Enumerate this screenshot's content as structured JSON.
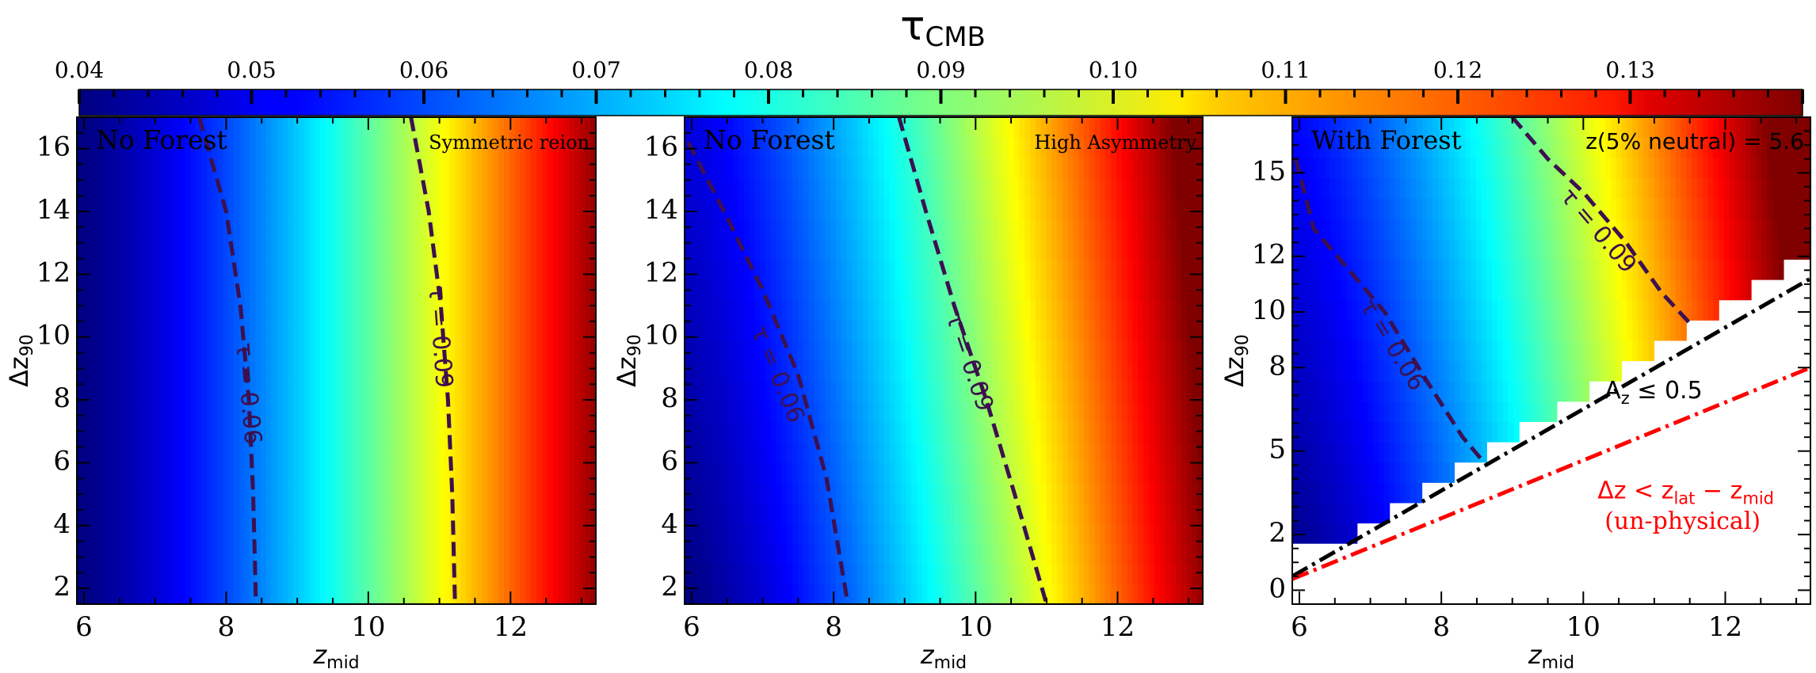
{
  "colorbar": {
    "title_main": "τ",
    "title_sub": "CMB",
    "ticks": [
      0.04,
      0.05,
      0.06,
      0.07,
      0.08,
      0.09,
      0.1,
      0.11,
      0.12,
      0.13
    ],
    "tick_labels": [
      "0.04",
      "0.05",
      "0.06",
      "0.07",
      "0.08",
      "0.09",
      "0.10",
      "0.11",
      "0.12",
      "0.13"
    ],
    "range": [
      0.04,
      0.14
    ],
    "colormap": "jet"
  },
  "chart_data": [
    {
      "type": "heatmap",
      "corner_label_left": "No Forest",
      "corner_label_right": "Symmetric reion",
      "xlabel_main": "z",
      "xlabel_sub": "mid",
      "ylabel_prefix": "Δz",
      "ylabel_sub": "90",
      "xlim": [
        5.9,
        13.2
      ],
      "ylim": [
        1.5,
        17.0
      ],
      "xticks": [
        6,
        8,
        10,
        12
      ],
      "xtick_labels": [
        "6",
        "8",
        "10",
        "12"
      ],
      "yticks": [
        2,
        4,
        6,
        8,
        10,
        12,
        14,
        16
      ],
      "ytick_labels": [
        "2",
        "4",
        "6",
        "8",
        "10",
        "12",
        "14",
        "16"
      ],
      "field": {
        "tau_at_xmin": 0.04,
        "tau_at_xmax": 0.138,
        "curvature": 0.3,
        "yslope": 0
      },
      "contours": [
        {
          "label": "τ = 0.06",
          "level": 0.06,
          "label_at": [
            8.3,
            8.2
          ],
          "points": [
            [
              7.62,
              17.0
            ],
            [
              8.0,
              14.0
            ],
            [
              8.2,
              11.0
            ],
            [
              8.32,
              8.0
            ],
            [
              8.38,
              5.0
            ],
            [
              8.42,
              1.5
            ]
          ]
        },
        {
          "label": "τ = 0.09",
          "level": 0.09,
          "label_at": [
            11.0,
            10.0
          ],
          "points": [
            [
              10.6,
              17.0
            ],
            [
              10.85,
              14.0
            ],
            [
              11.02,
              11.0
            ],
            [
              11.12,
              8.0
            ],
            [
              11.18,
              5.0
            ],
            [
              11.22,
              1.5
            ]
          ]
        }
      ],
      "lines": [],
      "annotations": []
    },
    {
      "type": "heatmap",
      "corner_label_left": "No Forest",
      "corner_label_right": "High Asymmetry",
      "xlabel_main": "z",
      "xlabel_sub": "mid",
      "ylabel_prefix": "Δz",
      "ylabel_sub": "90",
      "xlim": [
        5.9,
        13.2
      ],
      "ylim": [
        1.5,
        17.0
      ],
      "xticks": [
        6,
        8,
        10,
        12
      ],
      "xtick_labels": [
        "6",
        "8",
        "10",
        "12"
      ],
      "yticks": [
        2,
        4,
        6,
        8,
        10,
        12,
        14,
        16
      ],
      "ytick_labels": [
        "2",
        "4",
        "6",
        "8",
        "10",
        "12",
        "14",
        "16"
      ],
      "field": {
        "tau_at_xmin": 0.04,
        "tau_at_xmax": 0.138,
        "curvature": 0.3,
        "yslope": 0.18
      },
      "contours": [
        {
          "label": "τ = 0.06",
          "level": 0.06,
          "label_at": [
            7.2,
            8.8
          ],
          "points": [
            [
              5.95,
              16.2
            ],
            [
              6.5,
              13.8
            ],
            [
              7.0,
              11.5
            ],
            [
              7.5,
              8.8
            ],
            [
              7.9,
              5.5
            ],
            [
              8.2,
              1.5
            ]
          ]
        },
        {
          "label": "τ = 0.09",
          "level": 0.09,
          "label_at": [
            9.9,
            9.2
          ],
          "points": [
            [
              8.92,
              17.0
            ],
            [
              9.3,
              14.0
            ],
            [
              9.7,
              11.0
            ],
            [
              10.15,
              8.0
            ],
            [
              10.55,
              5.0
            ],
            [
              11.0,
              1.5
            ]
          ]
        }
      ],
      "lines": [],
      "annotations": []
    },
    {
      "type": "heatmap",
      "corner_label_left": "With Forest",
      "corner_label_right": "z(5% neutral) = 5.6",
      "xlabel_main": "z",
      "xlabel_sub": "mid",
      "ylabel_prefix": "Δz",
      "ylabel_sub": "90",
      "xlim": [
        5.9,
        13.2
      ],
      "ylim": [
        -0.5,
        17.0
      ],
      "xticks": [
        6,
        8,
        10,
        12
      ],
      "xtick_labels": [
        "6",
        "8",
        "10",
        "12"
      ],
      "yticks": [
        0,
        2,
        5,
        8,
        10,
        12,
        15
      ],
      "ytick_labels": [
        "0",
        "2",
        "5",
        "8",
        "10",
        "12",
        "15"
      ],
      "field": {
        "tau_at_xmin": 0.04,
        "tau_at_xmax": 0.138,
        "curvature": 0.3,
        "yslope": 0.22
      },
      "mask": {
        "y_floor": 1.5,
        "edge_at_xmin": 0.6,
        "edge_slope": 1.58
      },
      "contours": [
        {
          "label": "τ = 0.06",
          "level": 0.06,
          "label_at": [
            7.3,
            8.8
          ],
          "points": [
            [
              5.95,
              15.5
            ],
            [
              6.2,
              13.0
            ],
            [
              6.6,
              11.8
            ],
            [
              7.2,
              10.0
            ],
            [
              7.8,
              7.5
            ],
            [
              8.3,
              5.5
            ],
            [
              8.6,
              4.6
            ]
          ]
        },
        {
          "label": "τ = 0.09",
          "level": 0.09,
          "label_at": [
            10.2,
            12.9
          ],
          "points": [
            [
              9.0,
              17.0
            ],
            [
              9.5,
              15.5
            ],
            [
              10.0,
              14.3
            ],
            [
              10.6,
              12.5
            ],
            [
              11.1,
              10.7
            ],
            [
              11.5,
              9.6
            ]
          ]
        }
      ],
      "lines": [
        {
          "name": "A_z ≤ 0.5",
          "color": "#000000",
          "style": "dashdot",
          "from": [
            5.9,
            0.5
          ],
          "to": [
            13.2,
            11.2
          ]
        },
        {
          "name": "Δz < z_lat − z_mid",
          "color": "#ff0000",
          "style": "dashdot",
          "from": [
            5.9,
            0.4
          ],
          "to": [
            13.2,
            8.0
          ]
        }
      ],
      "annotations": [
        {
          "text_main": "A",
          "text_sub": "z",
          "text_tail": " ≤ 0.5",
          "color": "#000000",
          "at": [
            10.3,
            6.9
          ]
        },
        {
          "text_main": "Δz < z",
          "text_sub": "lat",
          "text_mid": " − z",
          "text_sub2": "mid",
          "color": "#ff0000",
          "at": [
            10.2,
            3.3
          ]
        },
        {
          "text_main": "(un-physical)",
          "color": "#ff0000",
          "at": [
            10.3,
            2.2
          ],
          "serif": true
        }
      ]
    }
  ]
}
